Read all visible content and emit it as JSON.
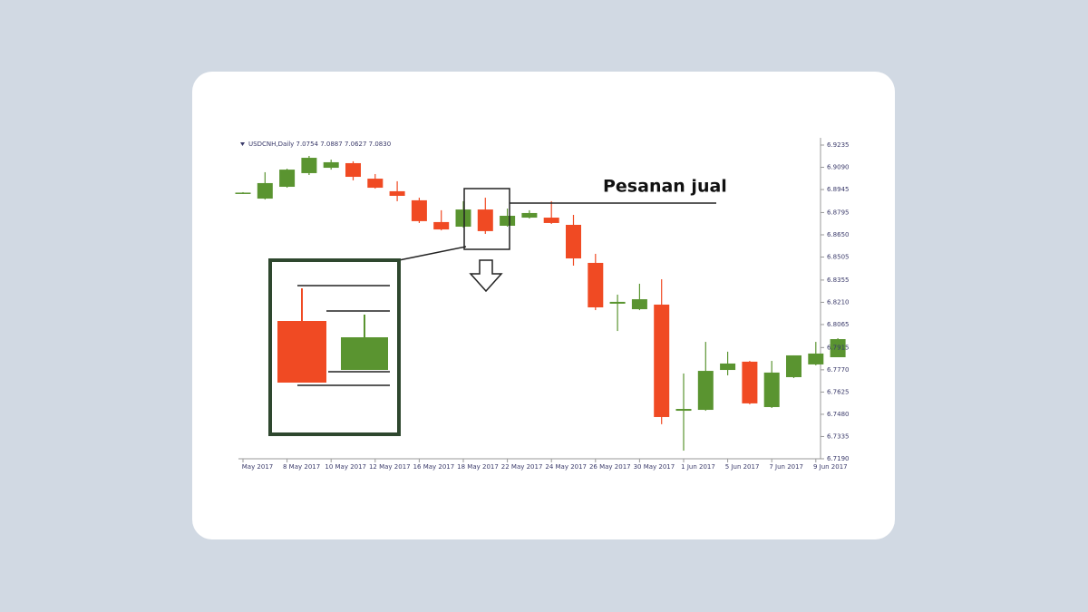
{
  "chart_data": {
    "type": "candlestick",
    "title": "USDCNH,Daily  7.0754 7.0887 7.0627 7.0830",
    "annotation": "Pesanan jual",
    "categories": [
      "May 2017",
      null,
      "8 May 2017",
      null,
      "10 May 2017",
      null,
      "12 May 2017",
      null,
      "16 May 2017",
      null,
      "18 May 2017",
      null,
      "22 May 2017",
      null,
      "24 May 2017",
      null,
      "26 May 2017",
      null,
      "30 May 2017",
      null,
      "1 Jun 2017",
      null,
      "5 Jun 2017",
      null,
      "7 Jun 2017",
      null,
      "9 Jun 2017",
      null
    ],
    "open": [
      6.8922,
      6.8886,
      6.8963,
      6.9052,
      6.9087,
      6.9117,
      6.9016,
      6.8934,
      6.8875,
      6.8733,
      6.8703,
      6.8815,
      6.8709,
      6.8762,
      6.8762,
      6.8715,
      6.8467,
      6.8201,
      6.8165,
      6.8195,
      6.7503,
      6.7509,
      6.7769,
      6.7823,
      6.7527,
      6.7722,
      6.7805,
      6.7852
    ],
    "high": [
      6.8928,
      6.9058,
      6.9081,
      6.9164,
      6.914,
      6.9129,
      6.9046,
      6.8999,
      6.8892,
      6.881,
      6.8869,
      6.8892,
      6.8821,
      6.881,
      6.8869,
      6.878,
      6.8526,
      6.826,
      6.8331,
      6.836,
      6.7746,
      6.7952,
      6.7888,
      6.7828,
      6.7828,
      6.7864,
      6.7952,
      6.7976
    ],
    "low": [
      6.8916,
      6.888,
      6.8957,
      6.904,
      6.9075,
      6.9005,
      6.8951,
      6.8869,
      6.8727,
      6.8679,
      6.8697,
      6.8656,
      6.8703,
      6.8756,
      6.8721,
      6.8449,
      6.8159,
      6.8023,
      6.8159,
      6.7415,
      6.7243,
      6.7503,
      6.7734,
      6.7545,
      6.7521,
      6.7716,
      6.7799,
      6.7852
    ],
    "close": [
      6.8925,
      6.8987,
      6.9075,
      6.9152,
      6.9123,
      6.9028,
      6.8957,
      6.8904,
      6.8739,
      6.8685,
      6.8815,
      6.8674,
      6.8774,
      6.8792,
      6.8727,
      6.8496,
      6.8177,
      6.8213,
      6.823,
      6.7462,
      6.7515,
      6.7763,
      6.7811,
      6.7551,
      6.7752,
      6.7864,
      6.7876,
      6.797
    ],
    "up_color": "#5a9430",
    "down_color": "#f04a23",
    "ylim": [
      6.719,
      6.9235
    ],
    "yticks": [
      {
        "value": 6.9235,
        "label": "6.9235"
      },
      {
        "value": 6.909,
        "label": "6.9090"
      },
      {
        "value": 6.8945,
        "label": "6.8945"
      },
      {
        "value": 6.8795,
        "label": "6.8795"
      },
      {
        "value": 6.865,
        "label": "6.8650"
      },
      {
        "value": 6.8505,
        "label": "6.8505"
      },
      {
        "value": 6.8355,
        "label": "6.8355"
      },
      {
        "value": 6.821,
        "label": "6.8210"
      },
      {
        "value": 6.8065,
        "label": "6.8065"
      },
      {
        "value": 6.7915,
        "label": "6.7915"
      },
      {
        "value": 6.777,
        "label": "6.7770"
      },
      {
        "value": 6.7625,
        "label": "6.7625"
      },
      {
        "value": 6.748,
        "label": "6.7480"
      },
      {
        "value": 6.7335,
        "label": "6.7335"
      },
      {
        "value": 6.719,
        "label": "6.7190"
      }
    ]
  }
}
